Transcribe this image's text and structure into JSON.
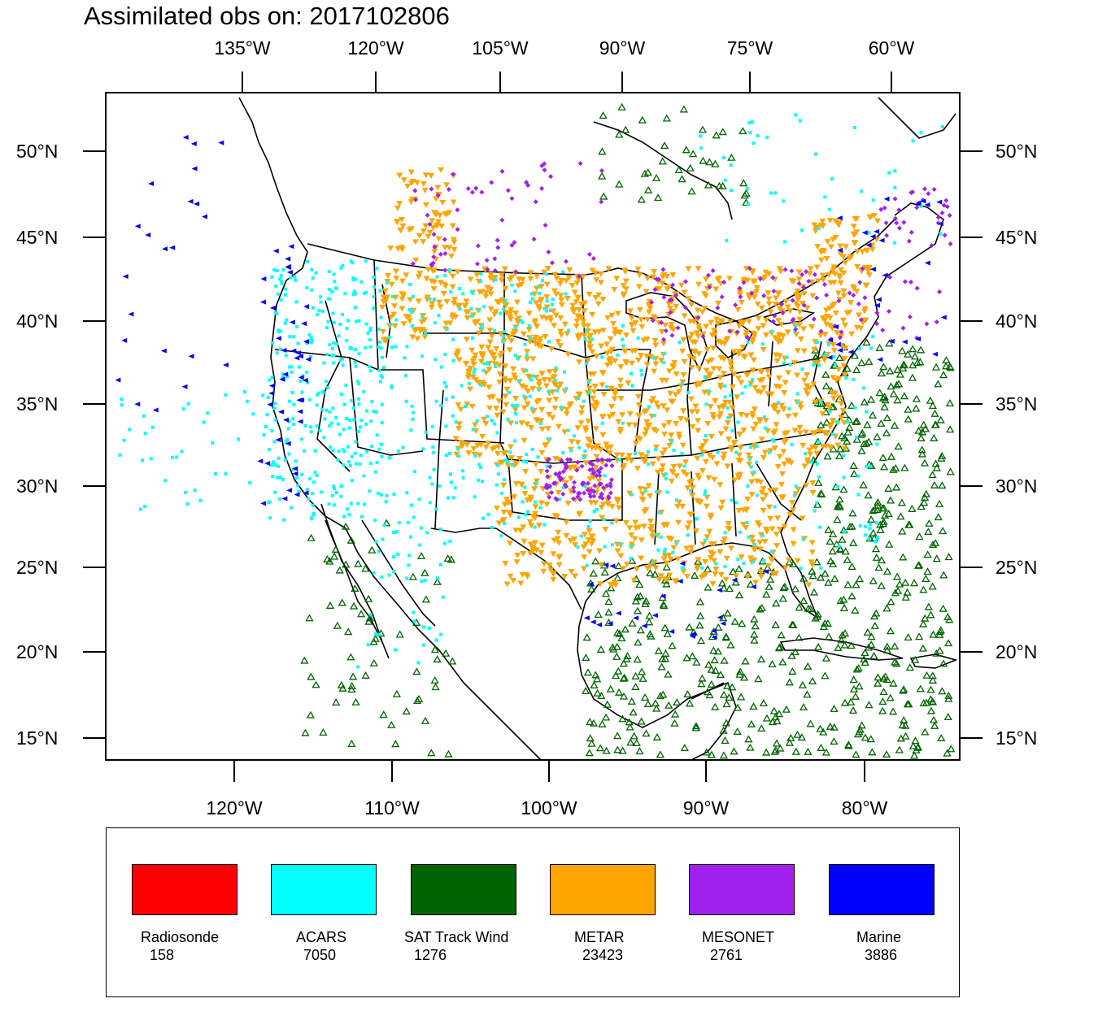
{
  "title": "Assimilated obs on: 2017102806",
  "axes": {
    "top_ticks": [
      "135°W",
      "120°W",
      "105°W",
      "90°W",
      "75°W",
      "60°W"
    ],
    "bottom_ticks": [
      "120°W",
      "110°W",
      "100°W",
      "90°W",
      "80°W"
    ],
    "left_ticks": [
      "50°N",
      "45°N",
      "40°N",
      "35°N",
      "30°N",
      "25°N",
      "20°N",
      "15°N"
    ],
    "right_ticks": [
      "50°N",
      "45°N",
      "40°N",
      "35°N",
      "30°N",
      "25°N",
      "20°N",
      "15°N"
    ]
  },
  "legend": [
    {
      "name": "Radiosonde",
      "count": "158",
      "color": "#ff0000"
    },
    {
      "name": "ACARS",
      "count": "7050",
      "color": "#00ffff"
    },
    {
      "name": "SAT Track Wind",
      "count": "1276",
      "color": "#006400"
    },
    {
      "name": "METAR",
      "count": "23423",
      "color": "#ffa500"
    },
    {
      "name": "MESONET",
      "count": "2761",
      "color": "#a020f0"
    },
    {
      "name": "Marine",
      "count": "3886",
      "color": "#0000ff"
    }
  ],
  "colors": {
    "acars": "#00ffff",
    "satwind": "#006400",
    "metar": "#ffa500",
    "mesonet": "#a020f0",
    "marine": "#0000ff",
    "frame": "#000000"
  }
}
